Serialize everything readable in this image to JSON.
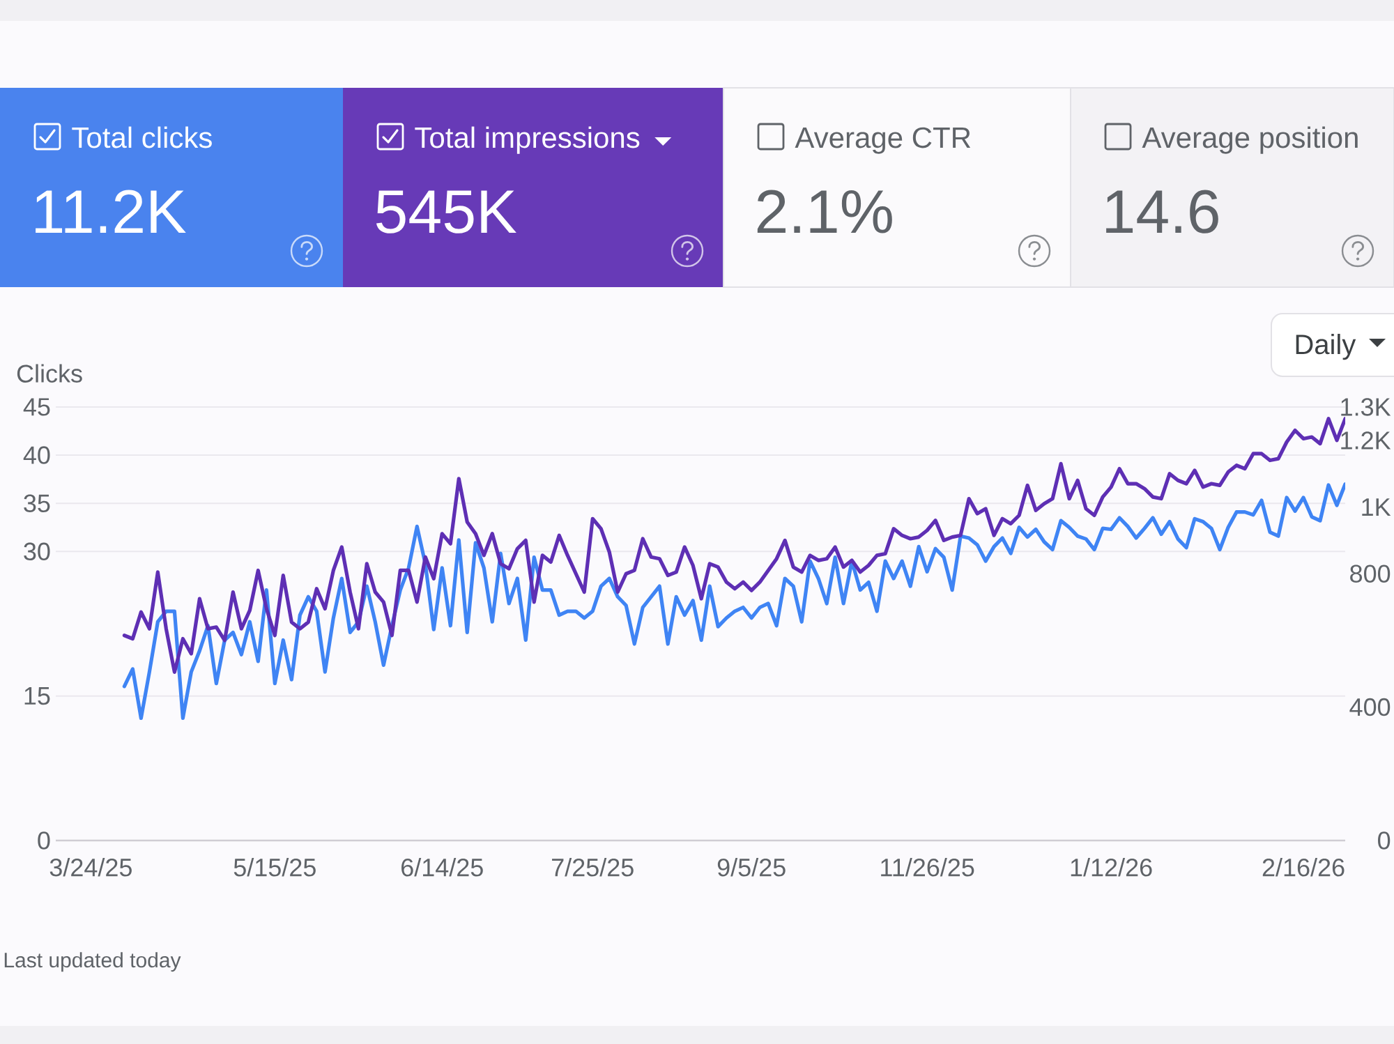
{
  "chart_data": [
    {
      "type": "other",
      "categories": [
        "Total clicks",
        "Total impressions",
        "Average CTR",
        "Average position"
      ],
      "value_labels": [
        "11.2K",
        "545K",
        "2.1%",
        "14.6"
      ],
      "colors": [
        "#4a83ee",
        "#673ab7",
        "#fbfafc",
        "#f3f2f5"
      ]
    },
    {
      "type": "line",
      "ylabel": "Clicks",
      "grid": "y",
      "annotations": [
        "Daily",
        "Last updated today"
      ],
      "categories": [
        "3/24/25",
        null,
        null,
        null,
        null,
        null,
        null,
        null,
        null,
        null,
        null,
        null,
        null,
        null,
        null,
        null,
        null,
        null,
        null,
        null,
        null,
        null,
        "5/15/25",
        null,
        null,
        null,
        null,
        null,
        null,
        null,
        null,
        null,
        null,
        null,
        null,
        null,
        null,
        null,
        null,
        null,
        null,
        null,
        "6/14/25",
        null,
        null,
        null,
        null,
        null,
        null,
        null,
        null,
        null,
        null,
        null,
        null,
        null,
        null,
        null,
        null,
        null,
        "7/25/25",
        null,
        null,
        null,
        null,
        null,
        null,
        null,
        null,
        null,
        null,
        null,
        null,
        null,
        null,
        null,
        null,
        null,
        null,
        "9/5/25",
        null,
        null,
        null,
        null,
        null,
        null,
        null,
        null,
        null,
        null,
        null,
        null,
        null,
        null,
        null,
        null,
        null,
        null,
        null,
        null,
        "11/26/25",
        null,
        null,
        null,
        null,
        null,
        null,
        null,
        null,
        null,
        null,
        null,
        null,
        null,
        null,
        null,
        null,
        null,
        null,
        null,
        null,
        null,
        "1/12/26",
        null,
        null,
        null,
        null,
        null,
        null,
        null,
        null,
        null,
        null,
        null,
        null,
        null,
        null,
        null,
        null,
        null,
        null,
        null,
        null,
        null,
        null,
        "2/16/26",
        null,
        null,
        null,
        null,
        null
      ],
      "series": [
        {
          "color": "#3f84f4",
          "values": [
            null,
            null,
            null,
            null,
            16.0,
            17.8,
            12.7,
            17.5,
            22.7,
            23.8,
            23.8,
            12.7,
            17.5,
            19.7,
            22.3,
            16.3,
            20.8,
            21.6,
            19.3,
            22.7,
            18.6,
            26.0,
            16.3,
            20.8,
            16.7,
            23.4,
            25.3,
            23.8,
            17.5,
            23.1,
            27.2,
            21.6,
            22.7,
            26.4,
            22.7,
            18.2,
            22.3,
            26.0,
            28.3,
            32.6,
            28.7,
            21.9,
            28.3,
            22.3,
            31.2,
            21.6,
            30.9,
            28.3,
            22.7,
            29.8,
            24.6,
            27.2,
            20.8,
            29.4,
            26.0,
            26.0,
            23.4,
            23.8,
            23.8,
            23.1,
            23.8,
            26.4,
            27.2,
            25.3,
            24.4,
            20.4,
            24.2,
            25.3,
            26.4,
            20.4,
            25.3,
            23.4,
            24.9,
            20.8,
            26.4,
            22.2,
            23.1,
            23.8,
            24.2,
            23.1,
            24.2,
            24.6,
            22.3,
            27.2,
            26.4,
            22.7,
            29.0,
            27.2,
            24.6,
            29.4,
            24.6,
            29.0,
            26.0,
            26.8,
            23.8,
            29.0,
            27.2,
            29.0,
            26.4,
            30.5,
            27.9,
            30.3,
            29.4,
            26.0,
            31.6,
            31.4,
            30.7,
            29.0,
            30.5,
            31.4,
            29.8,
            32.5,
            31.5,
            32.3,
            31.0,
            30.2,
            33.2,
            32.5,
            31.6,
            31.3,
            30.2,
            32.4,
            32.3,
            33.5,
            32.6,
            31.4,
            32.4,
            33.5,
            31.8,
            33.1,
            31.3,
            30.4,
            33.4,
            33.1,
            32.4,
            30.2,
            32.5,
            34.1,
            34.1,
            33.8,
            35.3,
            32.0,
            31.6,
            35.6,
            34.2,
            35.6,
            33.6,
            33.2,
            36.9,
            34.8,
            37.0
          ]
        },
        {
          "color": "#5e2fb4",
          "axis": "y2",
          "values": [
            null,
            null,
            null,
            null,
            615,
            605,
            685,
            635,
            805,
            635,
            505,
            605,
            560,
            725,
            635,
            640,
            600,
            745,
            635,
            690,
            810,
            695,
            615,
            795,
            655,
            635,
            655,
            755,
            695,
            810,
            880,
            745,
            635,
            830,
            745,
            715,
            615,
            810,
            810,
            715,
            850,
            785,
            920,
            890,
            1085,
            955,
            920,
            855,
            920,
            830,
            815,
            875,
            900,
            715,
            855,
            835,
            915,
            855,
            800,
            745,
            965,
            935,
            865,
            745,
            800,
            810,
            905,
            850,
            845,
            795,
            805,
            880,
            825,
            725,
            830,
            820,
            775,
            755,
            775,
            750,
            775,
            810,
            845,
            900,
            820,
            805,
            855,
            840,
            845,
            880,
            820,
            840,
            805,
            825,
            855,
            860,
            935,
            915,
            905,
            910,
            930,
            960,
            900,
            910,
            915,
            1025,
            980,
            995,
            915,
            965,
            950,
            975,
            1065,
            990,
            1010,
            1025,
            1130,
            1025,
            1080,
            995,
            975,
            1030,
            1060,
            1115,
            1070,
            1070,
            1055,
            1030,
            1025,
            1100,
            1080,
            1070,
            1110,
            1060,
            1070,
            1065,
            1105,
            1125,
            1115,
            1160,
            1160,
            1140,
            1145,
            1195,
            1230,
            1205,
            1210,
            1190,
            1265,
            1200,
            1265
          ]
        }
      ],
      "ylim": [
        0,
        45
      ],
      "yticks": [
        0,
        15,
        30,
        35,
        40,
        45
      ],
      "y2lim": [
        0,
        1300
      ],
      "y2ticks": [
        0,
        400,
        800,
        {
          "value": 1000,
          "label": "1K"
        },
        {
          "value": 1200,
          "label": "1.2K"
        },
        {
          "value": 1300,
          "label": "1.3K"
        }
      ]
    }
  ]
}
